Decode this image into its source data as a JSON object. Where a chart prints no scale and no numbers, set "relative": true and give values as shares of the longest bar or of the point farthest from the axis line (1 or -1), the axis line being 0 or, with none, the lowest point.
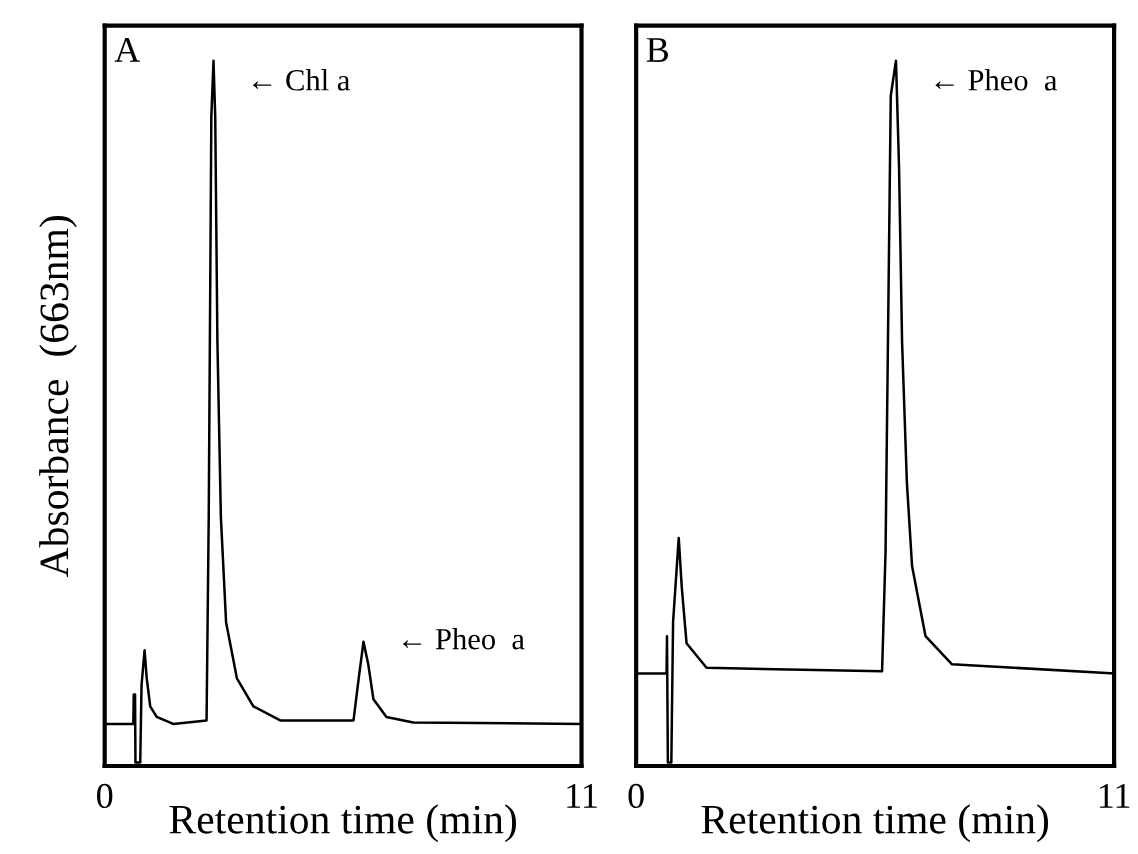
{
  "chart_data": [
    {
      "type": "line",
      "title": "A",
      "xlabel": "Retention time (min)",
      "ylabel": "Absorbance  (663nm)",
      "relative": true,
      "xlim": [
        0,
        11
      ],
      "xticks": [
        0,
        11
      ],
      "series": [
        {
          "color": "#000000",
          "x": [
            0,
            0.66,
            0.67,
            0.7,
            0.71,
            0.82,
            0.85,
            0.92,
            0.97,
            1.05,
            1.2,
            1.58,
            2.35,
            2.4,
            2.46,
            2.51,
            2.55,
            2.6,
            2.68,
            2.8,
            3.05,
            3.43,
            4.05,
            5.74,
            5.86,
            5.97,
            6.08,
            6.2,
            6.5,
            7.12,
            11
          ],
          "values": [
            0.055,
            0.055,
            0.097,
            0.097,
            0,
            0,
            0.11,
            0.16,
            0.12,
            0.08,
            0.065,
            0.055,
            0.06,
            0.35,
            0.92,
            1.0,
            0.92,
            0.6,
            0.35,
            0.2,
            0.12,
            0.08,
            0.06,
            0.06,
            0.12,
            0.172,
            0.14,
            0.09,
            0.065,
            0.057,
            0.055
          ]
        }
      ],
      "annotations": [
        {
          "text": "← Chl a",
          "x": 2.51,
          "y": 1.0
        },
        {
          "text": "← Pheo  a",
          "x": 5.97,
          "y": 0.172
        }
      ]
    },
    {
      "type": "line",
      "title": "B",
      "xlabel": "Retention time (min)",
      "relative": true,
      "xlim": [
        0,
        11
      ],
      "xticks": [
        0,
        11
      ],
      "series": [
        {
          "color": "#000000",
          "x": [
            0,
            0.7,
            0.71,
            0.73,
            0.81,
            0.85,
            0.98,
            1.05,
            1.16,
            1.62,
            5.66,
            5.74,
            5.86,
            5.98,
            6.05,
            6.12,
            6.23,
            6.35,
            6.66,
            7.27,
            11
          ],
          "values": [
            0.127,
            0.127,
            0.18,
            0,
            0,
            0.2,
            0.32,
            0.25,
            0.17,
            0.135,
            0.13,
            0.3,
            0.95,
            1.0,
            0.85,
            0.6,
            0.4,
            0.28,
            0.18,
            0.14,
            0.127
          ]
        }
      ],
      "annotations": [
        {
          "text": "← Pheo  a",
          "x": 5.98,
          "y": 1.0
        }
      ]
    }
  ]
}
